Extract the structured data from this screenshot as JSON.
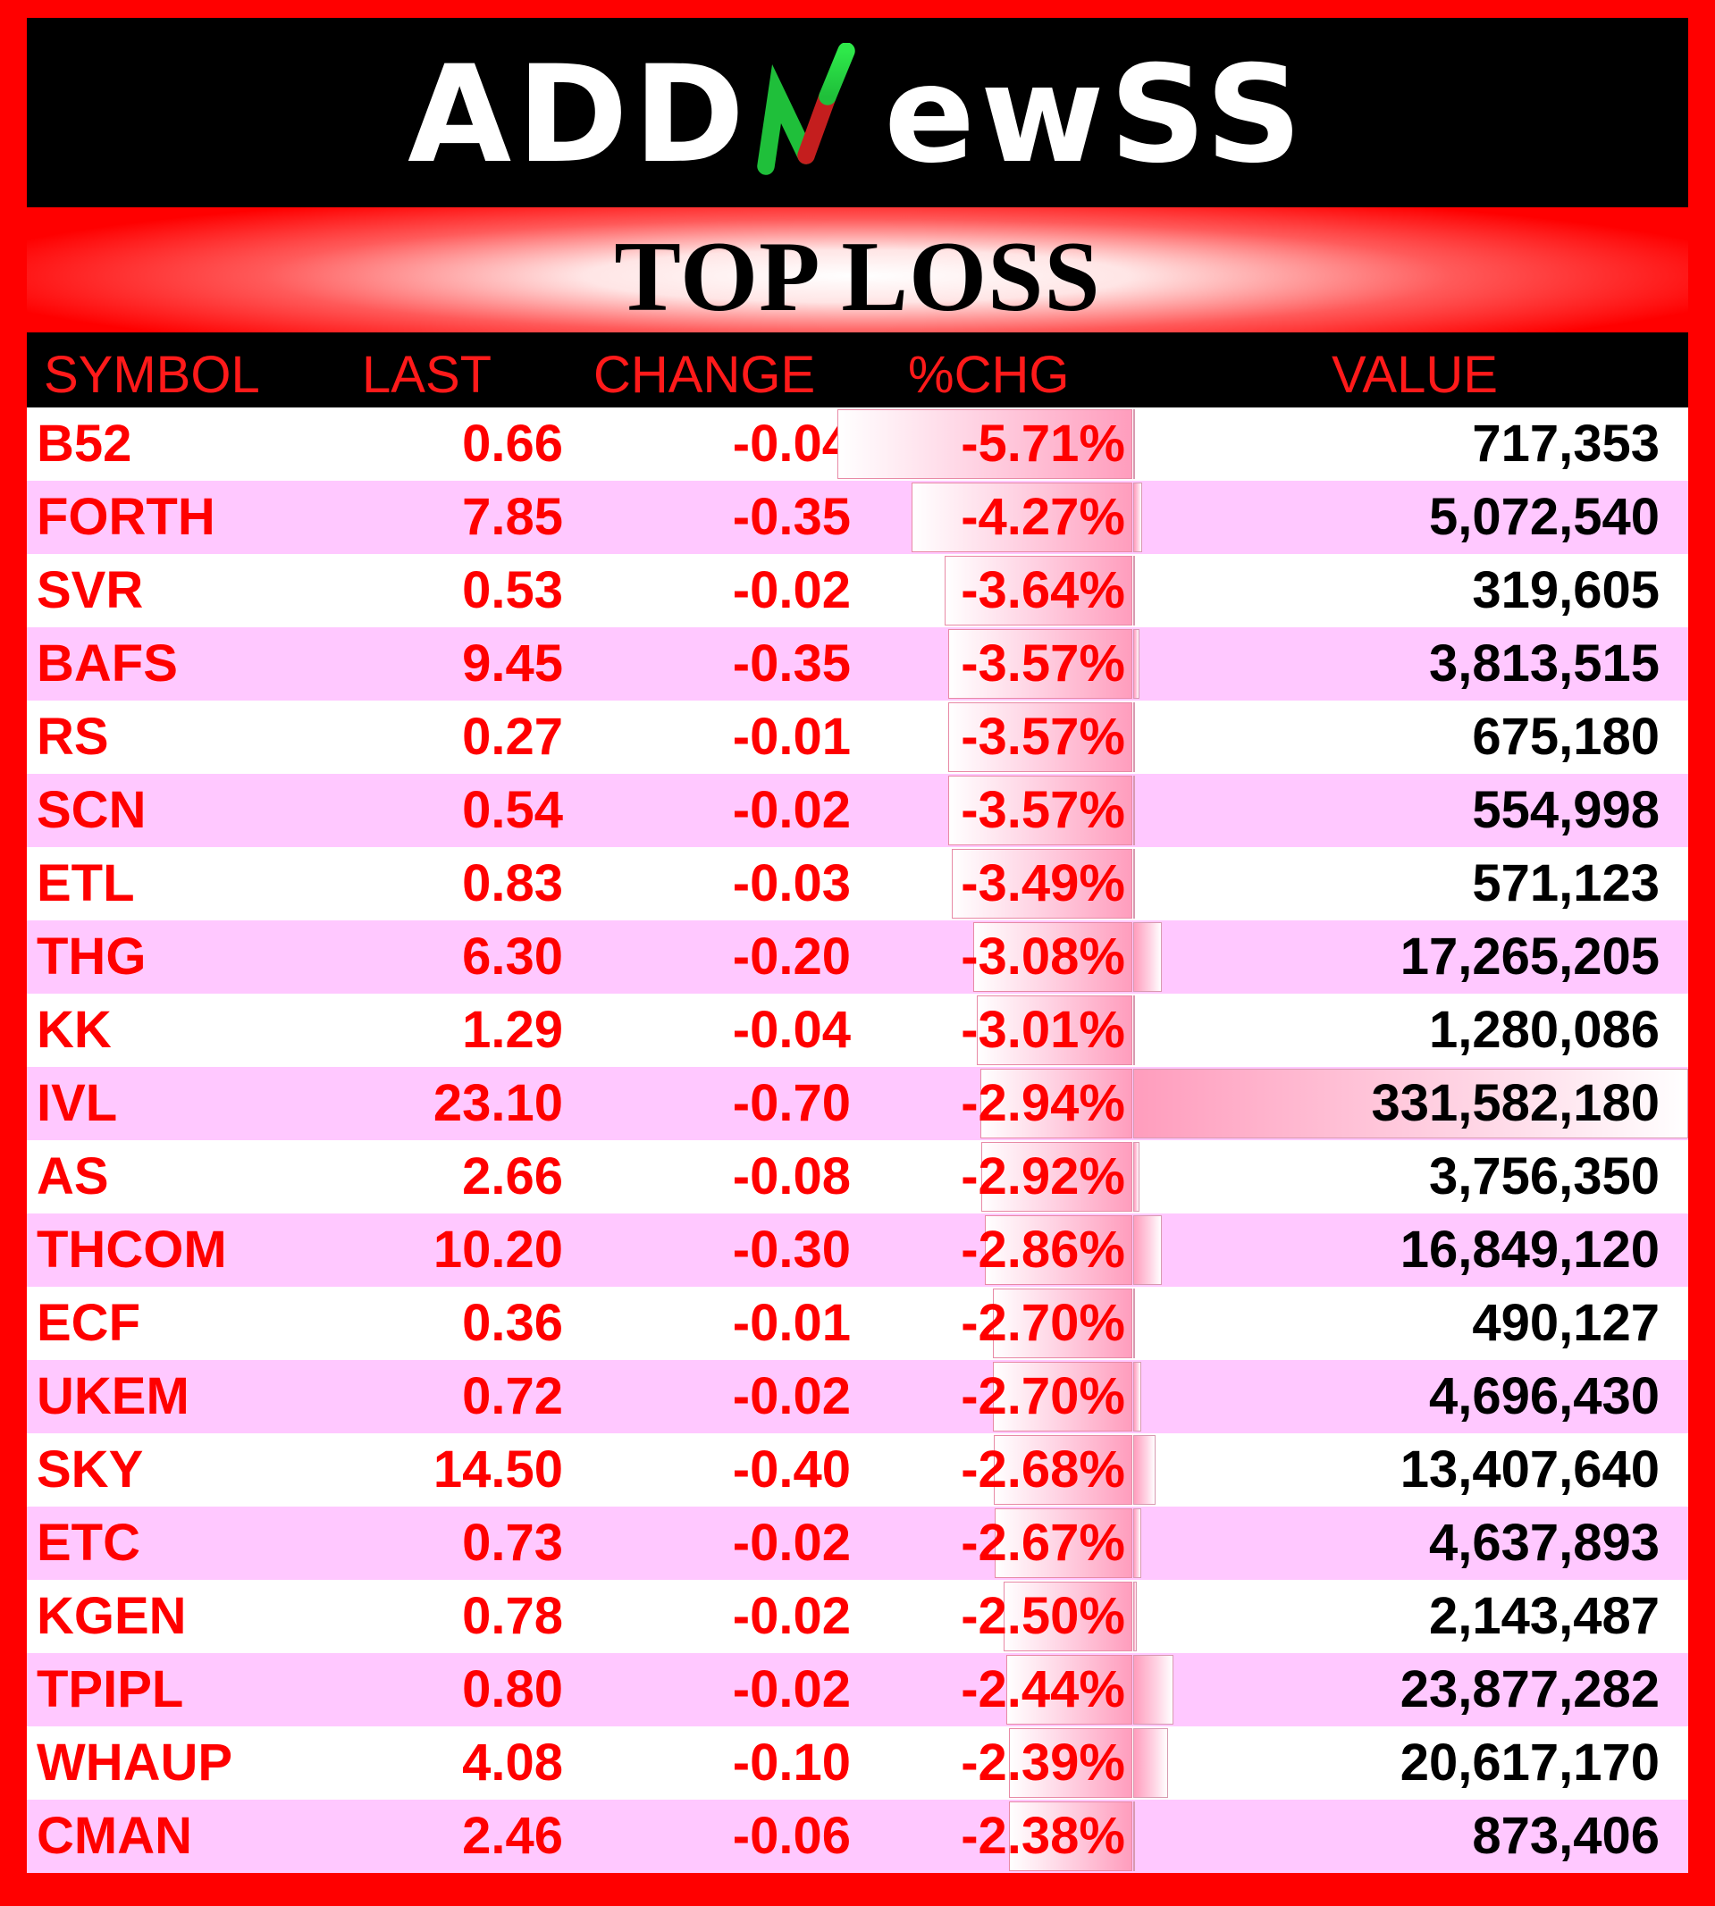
{
  "brand": {
    "logo_text": "ADDNewSS",
    "n_icon": "green-red-n-swoosh"
  },
  "title": "TOP LOSS",
  "columns": {
    "symbol": "SYMBOL",
    "last": "LAST",
    "change": "CHANGE",
    "pct": "%CHG",
    "value": "VALUE"
  },
  "colors": {
    "background": "#ff0000",
    "header_bg": "#000000",
    "header_text": "#ff1a1a",
    "row_alt": "#ffc8ff",
    "text_red": "#ff0000",
    "value_text": "#000000"
  },
  "rows": [
    {
      "symbol": "B52",
      "last": "0.66",
      "change": "-0.04",
      "pct": "-5.71%",
      "value": "717,353"
    },
    {
      "symbol": "FORTH",
      "last": "7.85",
      "change": "-0.35",
      "pct": "-4.27%",
      "value": "5,072,540"
    },
    {
      "symbol": "SVR",
      "last": "0.53",
      "change": "-0.02",
      "pct": "-3.64%",
      "value": "319,605"
    },
    {
      "symbol": "BAFS",
      "last": "9.45",
      "change": "-0.35",
      "pct": "-3.57%",
      "value": "3,813,515"
    },
    {
      "symbol": "RS",
      "last": "0.27",
      "change": "-0.01",
      "pct": "-3.57%",
      "value": "675,180"
    },
    {
      "symbol": "SCN",
      "last": "0.54",
      "change": "-0.02",
      "pct": "-3.57%",
      "value": "554,998"
    },
    {
      "symbol": "ETL",
      "last": "0.83",
      "change": "-0.03",
      "pct": "-3.49%",
      "value": "571,123"
    },
    {
      "symbol": "THG",
      "last": "6.30",
      "change": "-0.20",
      "pct": "-3.08%",
      "value": "17,265,205"
    },
    {
      "symbol": "KK",
      "last": "1.29",
      "change": "-0.04",
      "pct": "-3.01%",
      "value": "1,280,086"
    },
    {
      "symbol": "IVL",
      "last": "23.10",
      "change": "-0.70",
      "pct": "-2.94%",
      "value": "331,582,180"
    },
    {
      "symbol": "AS",
      "last": "2.66",
      "change": "-0.08",
      "pct": "-2.92%",
      "value": "3,756,350"
    },
    {
      "symbol": "THCOM",
      "last": "10.20",
      "change": "-0.30",
      "pct": "-2.86%",
      "value": "16,849,120"
    },
    {
      "symbol": "ECF",
      "last": "0.36",
      "change": "-0.01",
      "pct": "-2.70%",
      "value": "490,127"
    },
    {
      "symbol": "UKEM",
      "last": "0.72",
      "change": "-0.02",
      "pct": "-2.70%",
      "value": "4,696,430"
    },
    {
      "symbol": "SKY",
      "last": "14.50",
      "change": "-0.40",
      "pct": "-2.68%",
      "value": "13,407,640"
    },
    {
      "symbol": "ETC",
      "last": "0.73",
      "change": "-0.02",
      "pct": "-2.67%",
      "value": "4,637,893"
    },
    {
      "symbol": "KGEN",
      "last": "0.78",
      "change": "-0.02",
      "pct": "-2.50%",
      "value": "2,143,487"
    },
    {
      "symbol": "TPIPL",
      "last": "0.80",
      "change": "-0.02",
      "pct": "-2.44%",
      "value": "23,877,282"
    },
    {
      "symbol": "WHAUP",
      "last": "4.08",
      "change": "-0.10",
      "pct": "-2.39%",
      "value": "20,617,170"
    },
    {
      "symbol": "CMAN",
      "last": "2.46",
      "change": "-0.06",
      "pct": "-2.38%",
      "value": "873,406"
    }
  ]
}
